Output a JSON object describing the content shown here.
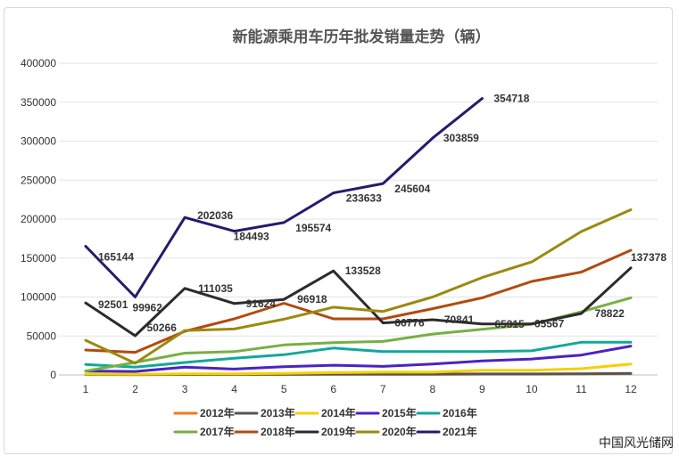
{
  "chart_data": {
    "type": "line",
    "title": "新能源乘用车历年批发销量走势（辆）",
    "xlabel": "",
    "ylabel": "",
    "categories": [
      "1",
      "2",
      "3",
      "4",
      "5",
      "6",
      "7",
      "8",
      "9",
      "10",
      "11",
      "12"
    ],
    "y_ticks": [
      "0",
      "50000",
      "100000",
      "150000",
      "200000",
      "250000",
      "300000",
      "350000",
      "400000"
    ],
    "ylim": [
      0,
      400000
    ],
    "grid": true,
    "legend_position": "bottom",
    "series": [
      {
        "name": "2012年",
        "color": "#f07a1e",
        "values": [
          500,
          500,
          600,
          600,
          700,
          800,
          800,
          800,
          1000,
          1000,
          1200,
          1500
        ]
      },
      {
        "name": "2013年",
        "color": "#555555",
        "values": [
          600,
          500,
          600,
          800,
          900,
          1000,
          1000,
          1000,
          1200,
          1300,
          1500,
          2000
        ]
      },
      {
        "name": "2014年",
        "color": "#f5d000",
        "values": [
          1000,
          900,
          1500,
          1500,
          2000,
          3000,
          3500,
          3500,
          6000,
          6000,
          8000,
          14000
        ]
      },
      {
        "name": "2015年",
        "color": "#4b22c4",
        "values": [
          5000,
          4500,
          10000,
          7500,
          10500,
          12500,
          11000,
          14000,
          18000,
          20500,
          25500,
          37000
        ]
      },
      {
        "name": "2016年",
        "color": "#12a89a",
        "values": [
          13500,
          10000,
          16000,
          21500,
          26000,
          34500,
          30000,
          30000,
          30000,
          31000,
          42000,
          42000
        ]
      },
      {
        "name": "2017年",
        "color": "#76b043",
        "values": [
          5000,
          16000,
          28000,
          30000,
          38500,
          41500,
          43000,
          52500,
          58500,
          65000,
          81000,
          99000
        ]
      },
      {
        "name": "2018年",
        "color": "#b24a10",
        "values": [
          32000,
          29000,
          56000,
          72000,
          92000,
          72000,
          72000,
          85000,
          99000,
          120000,
          132000,
          160000
        ]
      },
      {
        "name": "2019年",
        "color": "#2b2b2b",
        "values": [
          92501,
          50266,
          111035,
          91624,
          96918,
          133528,
          66776,
          70841,
          65315,
          65567,
          78822,
          137378
        ]
      },
      {
        "name": "2020年",
        "color": "#9a8a10",
        "values": [
          44500,
          15000,
          57000,
          59000,
          71500,
          87000,
          81500,
          100000,
          125000,
          145000,
          184000,
          212000
        ]
      },
      {
        "name": "2021年",
        "color": "#261b6b",
        "values": [
          165144,
          99962,
          202036,
          184493,
          195574,
          233633,
          245604,
          303859,
          354718,
          null,
          null,
          null
        ]
      }
    ],
    "data_labels": [
      {
        "text": "165144",
        "x": 1,
        "y": 165144,
        "anchor": "start",
        "dx": 14,
        "dy": 16
      },
      {
        "text": "99962",
        "x": 2,
        "y": 99962,
        "anchor": "start",
        "dx": -3,
        "dy": 16
      },
      {
        "text": "202036",
        "x": 3,
        "y": 202036,
        "anchor": "start",
        "dx": 14,
        "dy": 2
      },
      {
        "text": "184493",
        "x": 4,
        "y": 184493,
        "anchor": "start",
        "dx": -1,
        "dy": 10
      },
      {
        "text": "195574",
        "x": 5,
        "y": 195574,
        "anchor": "start",
        "dx": 13,
        "dy": 10
      },
      {
        "text": "233633",
        "x": 6,
        "y": 233633,
        "anchor": "start",
        "dx": 14,
        "dy": 10
      },
      {
        "text": "245604",
        "x": 7,
        "y": 245604,
        "anchor": "start",
        "dx": 13,
        "dy": 10
      },
      {
        "text": "303859",
        "x": 8,
        "y": 303859,
        "anchor": "start",
        "dx": 12,
        "dy": 4
      },
      {
        "text": "354718",
        "x": 9,
        "y": 354718,
        "anchor": "start",
        "dx": 13,
        "dy": 4
      },
      {
        "text": "92501",
        "x": 1,
        "y": 92501,
        "anchor": "start",
        "dx": 14,
        "dy": 6
      },
      {
        "text": "50266",
        "x": 2,
        "y": 50266,
        "anchor": "start",
        "dx": 13,
        "dy": -5
      },
      {
        "text": "111035",
        "x": 3,
        "y": 111035,
        "anchor": "start",
        "dx": 15,
        "dy": 4
      },
      {
        "text": "91624",
        "x": 4,
        "y": 91624,
        "anchor": "start",
        "dx": 13,
        "dy": 4
      },
      {
        "text": "96918",
        "x": 5,
        "y": 96918,
        "anchor": "start",
        "dx": 15,
        "dy": 4
      },
      {
        "text": "133528",
        "x": 6,
        "y": 133528,
        "anchor": "start",
        "dx": 13,
        "dy": 4
      },
      {
        "text": "66776",
        "x": 7,
        "y": 66776,
        "anchor": "start",
        "dx": 13,
        "dy": 4
      },
      {
        "text": "70841",
        "x": 8,
        "y": 70841,
        "anchor": "start",
        "dx": 13,
        "dy": 4
      },
      {
        "text": "65315",
        "x": 9,
        "y": 65315,
        "anchor": "start",
        "dx": 14,
        "dy": 4
      },
      {
        "text": "65567",
        "x": 10,
        "y": 65567,
        "anchor": "start",
        "dx": 3,
        "dy": 4
      },
      {
        "text": "78822",
        "x": 11,
        "y": 78822,
        "anchor": "start",
        "dx": 15,
        "dy": 4
      },
      {
        "text": "137378",
        "x": 12,
        "y": 137378,
        "anchor": "end",
        "dx": 40,
        "dy": -8
      }
    ]
  },
  "footer": {
    "source": "中国风光储网"
  }
}
